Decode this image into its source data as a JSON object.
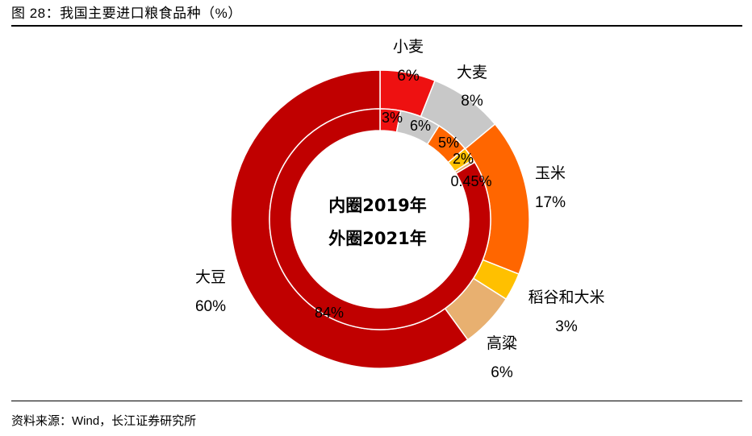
{
  "figure": {
    "title": "图 28：我国主要进口粮食品种（%）",
    "source": "资料来源：Wind，长江证券研究所"
  },
  "chart_data": {
    "type": "donut",
    "center_lines": [
      "内圈2019年",
      "外圈2021年"
    ],
    "categories": [
      "小麦",
      "大麦",
      "玉米",
      "稻谷和大米",
      "高粱",
      "大豆"
    ],
    "colors": [
      "#ee1111",
      "#c8c8c8",
      "#ff6600",
      "#ffc000",
      "#e8b070",
      "#c00000"
    ],
    "series": [
      {
        "name": "外圈2021年",
        "values": [
          6,
          8,
          17,
          3,
          6,
          60
        ],
        "labels": [
          "6%",
          "8%",
          "17%",
          "3%",
          "6%",
          "60%"
        ]
      },
      {
        "name": "内圈2019年",
        "values": [
          3,
          6,
          5,
          2,
          0.45,
          84
        ],
        "labels": [
          "3%",
          "6%",
          "5%",
          "2%",
          "0.45%",
          "84%"
        ]
      }
    ]
  }
}
